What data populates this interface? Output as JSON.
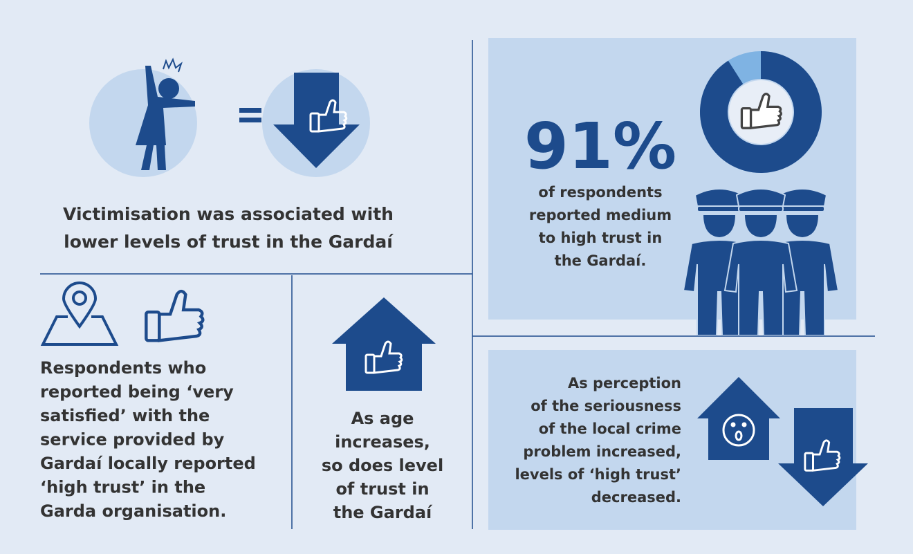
{
  "victimisation": {
    "lines": [
      "Victimisation was associated with",
      "lower levels of trust in the Gardaí"
    ]
  },
  "satisfaction": {
    "lines": [
      "Respondents who",
      "reported being ‘very",
      "satisfied’ with the",
      "service provided by",
      "Gardaí locally reported",
      "‘high trust’ in the",
      "Garda organisation."
    ]
  },
  "age": {
    "lines": [
      "As age",
      "increases,",
      "so does level",
      "of trust in",
      "the Gardaí"
    ]
  },
  "trust": {
    "value": 91,
    "label": "91%",
    "lines": [
      "of respondents",
      "reported medium",
      "to high trust in",
      "the Gardaí."
    ]
  },
  "crime": {
    "lines": [
      "As perception",
      "of the seriousness",
      "of the local crime",
      "problem increased,",
      "levels of ‘high trust’",
      "decreased."
    ]
  }
}
